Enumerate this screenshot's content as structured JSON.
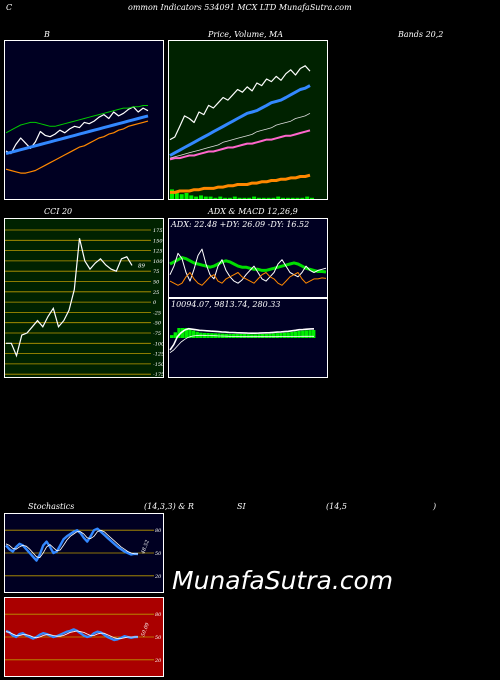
{
  "header": {
    "left": "C",
    "middle": "ommon  Indicators 534091 MCX  LTD MunafaSutra.com"
  },
  "row1": {
    "bollinger_title": "B",
    "price_title": "Price,  Volume,  MA",
    "bands_title": "Bands 20,2"
  },
  "row2": {
    "cci_title": "CCI 20",
    "adx_title": "ADX  & MACD 12,26,9",
    "adx_values": "ADX: 22.48  +DY: 26.09 -DY: 16.52",
    "macd_values": "10094.07,  9813.74,  280.33",
    "cci_current": "89",
    "cci_ticks": [
      "175",
      "150",
      "125",
      "100",
      "75",
      "50",
      "25",
      "0",
      "-25",
      "-50",
      "-75",
      "-100",
      "-125",
      "-150",
      "-175"
    ]
  },
  "row3": {
    "stoch_title": "Stochastics",
    "stoch_params": "(14,3,3) & R",
    "rsi_title": "SI",
    "rsi_params": "(14,5",
    "rsi_close": ")",
    "stoch_current": "48.52",
    "stoch_ticks": [
      "80",
      "50",
      "20"
    ],
    "rsi_current": "50.09",
    "rsi_ticks": [
      "80",
      "50",
      "20"
    ]
  },
  "brand": "MunafaSutra.com",
  "colors": {
    "bollinger_bg": "#000022",
    "price_bg": "#002200",
    "cci_bg": "#002200",
    "adx_bg": "#000022",
    "stoch_bg": "#000022",
    "rsi_bg": "#aa0000",
    "grid_line": "#bb9900"
  },
  "chart_data": [
    {
      "type": "line",
      "name": "bollinger-bands",
      "x": [
        0,
        1,
        2,
        3,
        4,
        5,
        6,
        7,
        8,
        9,
        10,
        11,
        12,
        13,
        14,
        15,
        16,
        17,
        18,
        19,
        20,
        21,
        22,
        23,
        24,
        25,
        26,
        27,
        28,
        29
      ],
      "series": [
        {
          "role": "price",
          "values": [
            30,
            28,
            35,
            40,
            36,
            32,
            37,
            45,
            42,
            41,
            43,
            46,
            44,
            47,
            49,
            48,
            52,
            51,
            53,
            56,
            58,
            55,
            60,
            57,
            59,
            62,
            64,
            60,
            63,
            61
          ]
        },
        {
          "role": "upper",
          "values": [
            44,
            46,
            48,
            50,
            51,
            52,
            52,
            51,
            50,
            49,
            49,
            50,
            51,
            52,
            53,
            54,
            55,
            56,
            57,
            58,
            59,
            60,
            61,
            62,
            63,
            63,
            64,
            64,
            65,
            65
          ]
        },
        {
          "role": "middle",
          "values": [
            28,
            29,
            30,
            31,
            32,
            33,
            34,
            35,
            36,
            37,
            38,
            39,
            40,
            41,
            42,
            43,
            44,
            45,
            46,
            47,
            48,
            49,
            50,
            51,
            52,
            53,
            54,
            55,
            56,
            57
          ]
        },
        {
          "role": "lower",
          "values": [
            16,
            15,
            14,
            13,
            13,
            14,
            15,
            17,
            19,
            21,
            23,
            25,
            27,
            29,
            31,
            33,
            34,
            36,
            38,
            40,
            41,
            43,
            44,
            46,
            47,
            49,
            50,
            51,
            52,
            53
          ]
        }
      ],
      "ylim": [
        0,
        100
      ]
    },
    {
      "type": "line",
      "name": "price-volume-ma",
      "x": [
        0,
        1,
        2,
        3,
        4,
        5,
        6,
        7,
        8,
        9,
        10,
        11,
        12,
        13,
        14,
        15,
        16,
        17,
        18,
        19,
        20,
        21,
        22,
        23,
        24,
        25,
        26,
        27,
        28,
        29
      ],
      "series": [
        {
          "role": "price",
          "values": [
            42,
            44,
            52,
            60,
            58,
            55,
            63,
            61,
            68,
            66,
            70,
            74,
            72,
            76,
            80,
            78,
            82,
            79,
            85,
            83,
            88,
            86,
            90,
            87,
            92,
            95,
            91,
            96,
            98,
            94
          ]
        },
        {
          "role": "ma-fast",
          "values": [
            30,
            32,
            34,
            36,
            38,
            40,
            42,
            44,
            46,
            48,
            50,
            52,
            54,
            56,
            58,
            60,
            62,
            63,
            64,
            66,
            68,
            70,
            71,
            72,
            74,
            76,
            78,
            80,
            81,
            83
          ]
        },
        {
          "role": "ma-mid",
          "values": [
            28,
            29,
            30,
            31,
            32,
            33,
            34,
            35,
            36,
            37,
            38,
            40,
            41,
            42,
            43,
            44,
            45,
            46,
            48,
            49,
            50,
            51,
            53,
            54,
            55,
            56,
            58,
            59,
            60,
            62
          ]
        },
        {
          "role": "ma-slow",
          "values": [
            27,
            28,
            28,
            29,
            30,
            30,
            31,
            32,
            33,
            33,
            34,
            35,
            36,
            36,
            37,
            38,
            39,
            39,
            40,
            41,
            42,
            42,
            43,
            44,
            45,
            45,
            46,
            47,
            48,
            49
          ]
        },
        {
          "role": "volume-ma",
          "values": [
            2,
            2,
            3,
            3,
            3,
            4,
            4,
            5,
            5,
            5,
            6,
            6,
            7,
            7,
            8,
            8,
            8,
            9,
            9,
            10,
            10,
            11,
            11,
            12,
            12,
            13,
            13,
            14,
            14,
            15
          ]
        }
      ],
      "volume": [
        8,
        6,
        4,
        5,
        3,
        2,
        3,
        2,
        2,
        1,
        2,
        1,
        1,
        2,
        1,
        1,
        1,
        2,
        1,
        1,
        1,
        1,
        2,
        1,
        1,
        1,
        1,
        1,
        2,
        1
      ],
      "ylim": [
        0,
        110
      ]
    },
    {
      "type": "line",
      "name": "cci-20",
      "x": [
        0,
        1,
        2,
        3,
        4,
        5,
        6,
        7,
        8,
        9,
        10,
        11,
        12,
        13,
        14,
        15,
        16,
        17,
        18,
        19,
        20,
        21,
        22,
        23,
        24
      ],
      "values": [
        -100,
        -100,
        -130,
        -80,
        -75,
        -60,
        -45,
        -60,
        -35,
        -15,
        -60,
        -45,
        -20,
        30,
        155,
        100,
        80,
        95,
        105,
        90,
        80,
        75,
        105,
        110,
        89
      ],
      "ylim": [
        -200,
        200
      ]
    },
    {
      "type": "line",
      "name": "adx-dmi",
      "x": [
        0,
        1,
        2,
        3,
        4,
        5,
        6,
        7,
        8,
        9,
        10,
        11,
        12,
        13,
        14,
        15,
        16,
        17,
        18,
        19,
        20,
        21,
        22,
        23,
        24,
        25,
        26,
        27,
        28,
        29,
        30,
        31,
        32,
        33,
        34,
        35,
        36,
        37,
        38,
        39
      ],
      "series": [
        {
          "role": "adx",
          "values": [
            30,
            32,
            34,
            36,
            35,
            33,
            31,
            30,
            29,
            28,
            27,
            28,
            30,
            32,
            33,
            32,
            30,
            28,
            27,
            27,
            26,
            25,
            25,
            24,
            24,
            25,
            26,
            27,
            28,
            29,
            30,
            31,
            30,
            28,
            26,
            25,
            24,
            23,
            23,
            22.48
          ]
        },
        {
          "role": "+di",
          "values": [
            20,
            28,
            40,
            35,
            22,
            14,
            25,
            38,
            44,
            30,
            20,
            16,
            28,
            34,
            24,
            18,
            14,
            12,
            15,
            20,
            24,
            28,
            22,
            16,
            14,
            18,
            22,
            30,
            34,
            28,
            22,
            20,
            18,
            22,
            28,
            24,
            22,
            24,
            25,
            26.09
          ]
        },
        {
          "role": "-di",
          "values": [
            14,
            12,
            10,
            12,
            18,
            22,
            16,
            12,
            10,
            14,
            18,
            20,
            14,
            12,
            16,
            18,
            20,
            22,
            18,
            16,
            14,
            12,
            16,
            20,
            22,
            18,
            16,
            12,
            10,
            14,
            18,
            20,
            22,
            16,
            12,
            14,
            16,
            16,
            17,
            16.52
          ]
        }
      ],
      "ylim": [
        0,
        60
      ]
    },
    {
      "type": "line",
      "name": "macd",
      "x": [
        0,
        1,
        2,
        3,
        4,
        5,
        6,
        7,
        8,
        9,
        10,
        11,
        12,
        13,
        14,
        15,
        16,
        17,
        18,
        19,
        20,
        21,
        22,
        23,
        24,
        25,
        26,
        27,
        28,
        29,
        30,
        31,
        32,
        33,
        34,
        35,
        36,
        37,
        38,
        39
      ],
      "series": [
        {
          "role": "macd",
          "values": [
            9300,
            9500,
            9800,
            9950,
            10050,
            10100,
            10080,
            10060,
            10040,
            10030,
            10020,
            10010,
            10000,
            9990,
            9980,
            9970,
            9960,
            9955,
            9950,
            9945,
            9940,
            9935,
            9930,
            9930,
            9935,
            9940,
            9945,
            9950,
            9960,
            9970,
            9980,
            9990,
            10000,
            10020,
            10040,
            10060,
            10070,
            10080,
            10090,
            10094.07
          ]
        },
        {
          "role": "signal",
          "values": [
            9200,
            9300,
            9450,
            9600,
            9700,
            9780,
            9820,
            9840,
            9850,
            9850,
            9845,
            9840,
            9835,
            9830,
            9825,
            9820,
            9815,
            9810,
            9805,
            9800,
            9800,
            9800,
            9800,
            9800,
            9800,
            9800,
            9800,
            9800,
            9800,
            9800,
            9805,
            9805,
            9805,
            9808,
            9810,
            9810,
            9812,
            9812,
            9813,
            9813.74
          ]
        }
      ],
      "histogram": [
        100,
        200,
        350,
        350,
        350,
        320,
        260,
        220,
        190,
        180,
        175,
        170,
        165,
        160,
        155,
        150,
        145,
        145,
        145,
        145,
        140,
        135,
        130,
        130,
        135,
        140,
        145,
        150,
        160,
        170,
        175,
        185,
        195,
        212,
        230,
        250,
        258,
        268,
        277,
        280.33
      ],
      "ylim": [
        9000,
        10500
      ]
    },
    {
      "type": "line",
      "name": "stochastics",
      "x": [
        0,
        1,
        2,
        3,
        4,
        5,
        6,
        7,
        8,
        9,
        10,
        11,
        12,
        13,
        14,
        15,
        16,
        17,
        18,
        19,
        20,
        21,
        22,
        23,
        24,
        25,
        26,
        27,
        28,
        29,
        30,
        31,
        32,
        33,
        34,
        35,
        36,
        37,
        38,
        39
      ],
      "series": [
        {
          "role": "%k",
          "values": [
            60,
            55,
            52,
            58,
            62,
            60,
            55,
            50,
            45,
            40,
            48,
            60,
            65,
            58,
            50,
            52,
            60,
            68,
            72,
            75,
            78,
            80,
            76,
            70,
            65,
            72,
            80,
            82,
            78,
            74,
            70,
            66,
            62,
            58,
            55,
            52,
            50,
            48,
            49,
            48.52
          ]
        },
        {
          "role": "%d",
          "values": [
            62,
            60,
            56,
            55,
            58,
            60,
            59,
            55,
            50,
            45,
            44,
            50,
            58,
            61,
            57,
            53,
            54,
            60,
            67,
            72,
            75,
            78,
            78,
            75,
            70,
            69,
            72,
            78,
            80,
            78,
            74,
            70,
            66,
            62,
            58,
            55,
            52,
            50,
            49,
            48.9
          ]
        }
      ],
      "yticks": [
        80,
        50,
        20
      ],
      "ylim": [
        0,
        100
      ]
    },
    {
      "type": "line",
      "name": "rsi",
      "x": [
        0,
        1,
        2,
        3,
        4,
        5,
        6,
        7,
        8,
        9,
        10,
        11,
        12,
        13,
        14,
        15,
        16,
        17,
        18,
        19,
        20,
        21,
        22,
        23,
        24,
        25,
        26,
        27,
        28,
        29,
        30,
        31,
        32,
        33,
        34,
        35,
        36,
        37,
        38,
        39
      ],
      "series": [
        {
          "role": "rsi",
          "values": [
            58,
            56,
            52,
            50,
            54,
            55,
            52,
            50,
            48,
            50,
            53,
            55,
            54,
            52,
            50,
            51,
            53,
            55,
            57,
            58,
            60,
            58,
            55,
            52,
            50,
            51,
            55,
            57,
            56,
            53,
            50,
            48,
            46,
            47,
            49,
            51,
            50,
            49,
            50,
            50.09
          ]
        },
        {
          "role": "rsi-ma",
          "values": [
            57,
            56,
            54,
            52,
            52,
            53,
            53,
            52,
            50,
            49,
            50,
            52,
            53,
            53,
            52,
            51,
            51,
            52,
            54,
            56,
            57,
            58,
            57,
            56,
            54,
            52,
            52,
            54,
            55,
            55,
            53,
            51,
            49,
            48,
            48,
            49,
            50,
            50,
            50,
            50.1
          ]
        }
      ],
      "yticks": [
        80,
        50,
        20
      ],
      "ylim": [
        0,
        100
      ]
    }
  ]
}
